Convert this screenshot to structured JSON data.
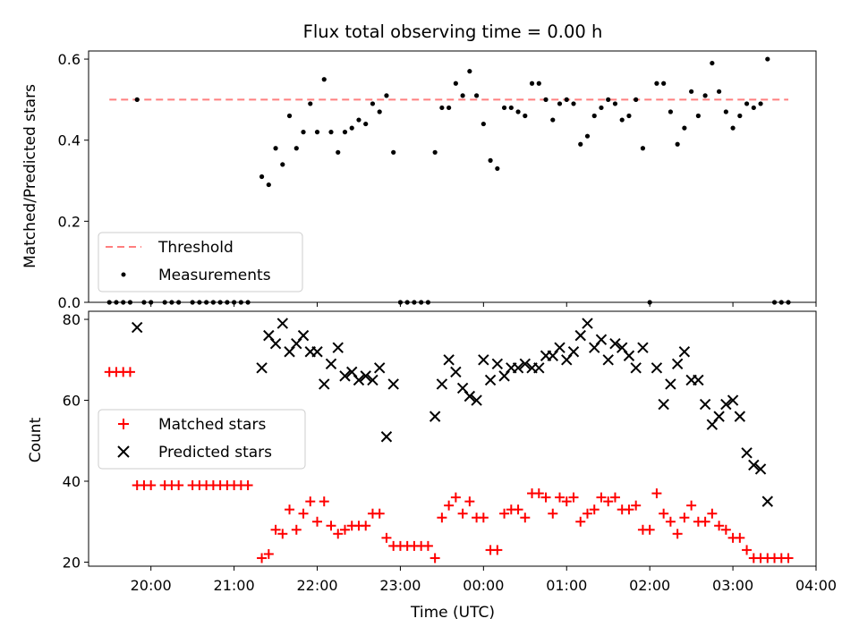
{
  "title": "Flux total observing time = 0.00 h",
  "chart_data": [
    {
      "type": "scatter",
      "panel": "top",
      "ylabel": "Matched/Predicted stars",
      "xlim": [
        "19:15",
        "04:00"
      ],
      "ylim": [
        0,
        0.62
      ],
      "yticks": [
        0.0,
        0.2,
        0.4,
        0.6
      ],
      "ytick_labels": [
        "0.0",
        "0.2",
        "0.4",
        "0.6"
      ],
      "legend_placement": "lower-left",
      "threshold": {
        "name": "Threshold",
        "value": 0.5,
        "x_range": [
          "19:30",
          "03:40"
        ],
        "color": "#ff7f7f",
        "style": "dashed"
      },
      "series": [
        {
          "name": "Measurements",
          "color": "#000000",
          "marker": "dot",
          "points": [
            [
              "19:30",
              0
            ],
            [
              "19:35",
              0
            ],
            [
              "19:40",
              0
            ],
            [
              "19:45",
              0
            ],
            [
              "19:50",
              0.5
            ],
            [
              "19:55",
              0
            ],
            [
              "20:00",
              0
            ],
            [
              "20:10",
              0
            ],
            [
              "20:15",
              0
            ],
            [
              "20:20",
              0
            ],
            [
              "20:30",
              0
            ],
            [
              "20:35",
              0
            ],
            [
              "20:40",
              0
            ],
            [
              "20:45",
              0
            ],
            [
              "20:50",
              0
            ],
            [
              "20:55",
              0
            ],
            [
              "21:00",
              0
            ],
            [
              "21:05",
              0
            ],
            [
              "21:10",
              0
            ],
            [
              "21:20",
              0.31
            ],
            [
              "21:25",
              0.29
            ],
            [
              "21:30",
              0.38
            ],
            [
              "21:35",
              0.34
            ],
            [
              "21:40",
              0.46
            ],
            [
              "21:45",
              0.38
            ],
            [
              "21:50",
              0.42
            ],
            [
              "21:55",
              0.49
            ],
            [
              "22:00",
              0.42
            ],
            [
              "22:05",
              0.55
            ],
            [
              "22:10",
              0.42
            ],
            [
              "22:15",
              0.37
            ],
            [
              "22:20",
              0.42
            ],
            [
              "22:25",
              0.43
            ],
            [
              "22:30",
              0.45
            ],
            [
              "22:35",
              0.44
            ],
            [
              "22:40",
              0.49
            ],
            [
              "22:45",
              0.47
            ],
            [
              "22:50",
              0.51
            ],
            [
              "22:55",
              0.37
            ],
            [
              "23:00",
              0
            ],
            [
              "23:05",
              0
            ],
            [
              "23:10",
              0
            ],
            [
              "23:15",
              0
            ],
            [
              "23:20",
              0
            ],
            [
              "23:25",
              0.37
            ],
            [
              "23:30",
              0.48
            ],
            [
              "23:35",
              0.48
            ],
            [
              "23:40",
              0.54
            ],
            [
              "23:45",
              0.51
            ],
            [
              "23:50",
              0.57
            ],
            [
              "23:55",
              0.51
            ],
            [
              "00:00",
              0.44
            ],
            [
              "00:05",
              0.35
            ],
            [
              "00:10",
              0.33
            ],
            [
              "00:15",
              0.48
            ],
            [
              "00:20",
              0.48
            ],
            [
              "00:25",
              0.47
            ],
            [
              "00:30",
              0.46
            ],
            [
              "00:35",
              0.54
            ],
            [
              "00:40",
              0.54
            ],
            [
              "00:45",
              0.5
            ],
            [
              "00:50",
              0.45
            ],
            [
              "00:55",
              0.49
            ],
            [
              "01:00",
              0.5
            ],
            [
              "01:05",
              0.49
            ],
            [
              "01:10",
              0.39
            ],
            [
              "01:15",
              0.41
            ],
            [
              "01:20",
              0.46
            ],
            [
              "01:25",
              0.48
            ],
            [
              "01:30",
              0.5
            ],
            [
              "01:35",
              0.49
            ],
            [
              "01:40",
              0.45
            ],
            [
              "01:45",
              0.46
            ],
            [
              "01:50",
              0.5
            ],
            [
              "01:55",
              0.38
            ],
            [
              "02:00",
              0
            ],
            [
              "02:05",
              0.54
            ],
            [
              "02:10",
              0.54
            ],
            [
              "02:15",
              0.47
            ],
            [
              "02:20",
              0.39
            ],
            [
              "02:25",
              0.43
            ],
            [
              "02:30",
              0.52
            ],
            [
              "02:35",
              0.46
            ],
            [
              "02:40",
              0.51
            ],
            [
              "02:45",
              0.59
            ],
            [
              "02:50",
              0.52
            ],
            [
              "02:55",
              0.47
            ],
            [
              "03:00",
              0.43
            ],
            [
              "03:05",
              0.46
            ],
            [
              "03:10",
              0.49
            ],
            [
              "03:15",
              0.48
            ],
            [
              "03:20",
              0.49
            ],
            [
              "03:25",
              0.6
            ],
            [
              "03:30",
              0
            ],
            [
              "03:35",
              0
            ],
            [
              "03:40",
              0
            ]
          ]
        }
      ]
    },
    {
      "type": "scatter",
      "panel": "bottom",
      "xlabel": "Time (UTC)",
      "ylabel": "Count",
      "xlim": [
        "19:15",
        "04:00"
      ],
      "ylim": [
        19,
        82
      ],
      "xticks": [
        "20:00",
        "21:00",
        "22:00",
        "23:00",
        "00:00",
        "01:00",
        "02:00",
        "03:00",
        "04:00"
      ],
      "yticks": [
        20,
        40,
        60,
        80
      ],
      "ytick_labels": [
        "20",
        "40",
        "60",
        "80"
      ],
      "legend_placement": "center-left",
      "series": [
        {
          "name": "Matched stars",
          "color": "#ff0000",
          "marker": "plus",
          "points": [
            [
              "19:30",
              67
            ],
            [
              "19:35",
              67
            ],
            [
              "19:40",
              67
            ],
            [
              "19:45",
              67
            ],
            [
              "19:50",
              39
            ],
            [
              "19:55",
              39
            ],
            [
              "20:00",
              39
            ],
            [
              "20:10",
              39
            ],
            [
              "20:15",
              39
            ],
            [
              "20:20",
              39
            ],
            [
              "20:30",
              39
            ],
            [
              "20:35",
              39
            ],
            [
              "20:40",
              39
            ],
            [
              "20:45",
              39
            ],
            [
              "20:50",
              39
            ],
            [
              "20:55",
              39
            ],
            [
              "21:00",
              39
            ],
            [
              "21:05",
              39
            ],
            [
              "21:10",
              39
            ],
            [
              "21:20",
              21
            ],
            [
              "21:25",
              22
            ],
            [
              "21:30",
              28
            ],
            [
              "21:35",
              27
            ],
            [
              "21:40",
              33
            ],
            [
              "21:45",
              28
            ],
            [
              "21:50",
              32
            ],
            [
              "21:55",
              35
            ],
            [
              "22:00",
              30
            ],
            [
              "22:05",
              35
            ],
            [
              "22:10",
              29
            ],
            [
              "22:15",
              27
            ],
            [
              "22:20",
              28
            ],
            [
              "22:25",
              29
            ],
            [
              "22:30",
              29
            ],
            [
              "22:35",
              29
            ],
            [
              "22:40",
              32
            ],
            [
              "22:45",
              32
            ],
            [
              "22:50",
              26
            ],
            [
              "22:55",
              24
            ],
            [
              "23:00",
              24
            ],
            [
              "23:05",
              24
            ],
            [
              "23:10",
              24
            ],
            [
              "23:15",
              24
            ],
            [
              "23:20",
              24
            ],
            [
              "23:25",
              21
            ],
            [
              "23:30",
              31
            ],
            [
              "23:35",
              34
            ],
            [
              "23:40",
              36
            ],
            [
              "23:45",
              32
            ],
            [
              "23:50",
              35
            ],
            [
              "23:55",
              31
            ],
            [
              "00:00",
              31
            ],
            [
              "00:05",
              23
            ],
            [
              "00:10",
              23
            ],
            [
              "00:15",
              32
            ],
            [
              "00:20",
              33
            ],
            [
              "00:25",
              33
            ],
            [
              "00:30",
              31
            ],
            [
              "00:35",
              37
            ],
            [
              "00:40",
              37
            ],
            [
              "00:45",
              36
            ],
            [
              "00:50",
              32
            ],
            [
              "00:55",
              36
            ],
            [
              "01:00",
              35
            ],
            [
              "01:05",
              36
            ],
            [
              "01:10",
              30
            ],
            [
              "01:15",
              32
            ],
            [
              "01:20",
              33
            ],
            [
              "01:25",
              36
            ],
            [
              "01:30",
              35
            ],
            [
              "01:35",
              36
            ],
            [
              "01:40",
              33
            ],
            [
              "01:45",
              33
            ],
            [
              "01:50",
              34
            ],
            [
              "01:55",
              28
            ],
            [
              "02:00",
              28
            ],
            [
              "02:05",
              37
            ],
            [
              "02:10",
              32
            ],
            [
              "02:15",
              30
            ],
            [
              "02:20",
              27
            ],
            [
              "02:25",
              31
            ],
            [
              "02:30",
              34
            ],
            [
              "02:35",
              30
            ],
            [
              "02:40",
              30
            ],
            [
              "02:45",
              32
            ],
            [
              "02:50",
              29
            ],
            [
              "02:55",
              28
            ],
            [
              "03:00",
              26
            ],
            [
              "03:05",
              26
            ],
            [
              "03:10",
              23
            ],
            [
              "03:15",
              21
            ],
            [
              "03:20",
              21
            ],
            [
              "03:25",
              21
            ],
            [
              "03:30",
              21
            ],
            [
              "03:35",
              21
            ],
            [
              "03:40",
              21
            ]
          ]
        },
        {
          "name": "Predicted stars",
          "color": "#000000",
          "marker": "x",
          "points": [
            [
              "19:50",
              78
            ],
            [
              "21:20",
              68
            ],
            [
              "21:25",
              76
            ],
            [
              "21:30",
              74
            ],
            [
              "21:35",
              79
            ],
            [
              "21:40",
              72
            ],
            [
              "21:45",
              74
            ],
            [
              "21:50",
              76
            ],
            [
              "21:55",
              72
            ],
            [
              "22:00",
              72
            ],
            [
              "22:05",
              64
            ],
            [
              "22:10",
              69
            ],
            [
              "22:15",
              73
            ],
            [
              "22:20",
              66
            ],
            [
              "22:25",
              67
            ],
            [
              "22:30",
              65
            ],
            [
              "22:35",
              66
            ],
            [
              "22:40",
              65
            ],
            [
              "22:45",
              68
            ],
            [
              "22:50",
              51
            ],
            [
              "22:55",
              64
            ],
            [
              "23:25",
              56
            ],
            [
              "23:30",
              64
            ],
            [
              "23:35",
              70
            ],
            [
              "23:40",
              67
            ],
            [
              "23:45",
              63
            ],
            [
              "23:50",
              61
            ],
            [
              "23:55",
              60
            ],
            [
              "00:00",
              70
            ],
            [
              "00:05",
              65
            ],
            [
              "00:10",
              69
            ],
            [
              "00:15",
              66
            ],
            [
              "00:20",
              68
            ],
            [
              "00:25",
              68
            ],
            [
              "00:30",
              69
            ],
            [
              "00:35",
              68
            ],
            [
              "00:40",
              68
            ],
            [
              "00:45",
              71
            ],
            [
              "00:50",
              71
            ],
            [
              "00:55",
              73
            ],
            [
              "01:00",
              70
            ],
            [
              "01:05",
              72
            ],
            [
              "01:10",
              76
            ],
            [
              "01:15",
              79
            ],
            [
              "01:20",
              73
            ],
            [
              "01:25",
              75
            ],
            [
              "01:30",
              70
            ],
            [
              "01:35",
              74
            ],
            [
              "01:40",
              73
            ],
            [
              "01:45",
              71
            ],
            [
              "01:50",
              68
            ],
            [
              "01:55",
              73
            ],
            [
              "02:05",
              68
            ],
            [
              "02:10",
              59
            ],
            [
              "02:15",
              64
            ],
            [
              "02:20",
              69
            ],
            [
              "02:25",
              72
            ],
            [
              "02:30",
              65
            ],
            [
              "02:35",
              65
            ],
            [
              "02:40",
              59
            ],
            [
              "02:45",
              54
            ],
            [
              "02:50",
              56
            ],
            [
              "02:55",
              59
            ],
            [
              "03:00",
              60
            ],
            [
              "03:05",
              56
            ],
            [
              "03:10",
              47
            ],
            [
              "03:15",
              44
            ],
            [
              "03:20",
              43
            ],
            [
              "03:25",
              35
            ]
          ]
        }
      ]
    }
  ]
}
